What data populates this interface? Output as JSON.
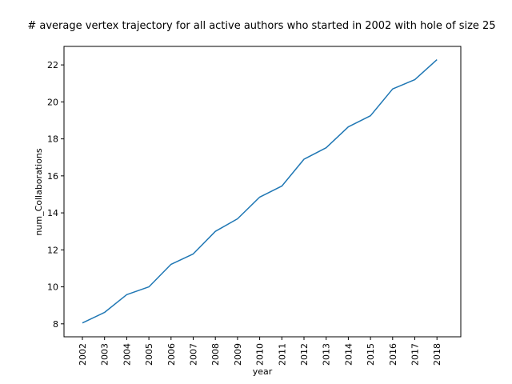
{
  "chart_data": {
    "type": "line",
    "title": "# average vertex trajectory for all active authors who started in 2002 with hole of size 25",
    "xlabel": "year",
    "ylabel": "num_Collaborations",
    "x": [
      "2002",
      "2003",
      "2004",
      "2005",
      "2006",
      "2007",
      "2008",
      "2009",
      "2010",
      "2011",
      "2012",
      "2013",
      "2014",
      "2015",
      "2016",
      "2017",
      "2018"
    ],
    "series": [
      {
        "values": [
          8.05,
          8.62,
          9.58,
          10.0,
          11.22,
          11.78,
          13.0,
          13.68,
          14.85,
          15.45,
          16.9,
          17.52,
          18.65,
          19.25,
          20.7,
          21.2,
          22.28
        ]
      }
    ],
    "ylim": [
      7.3,
      23.0
    ],
    "yticks": [
      8,
      10,
      12,
      14,
      16,
      18,
      20,
      22
    ],
    "grid": false,
    "colors": {
      "line": "#1f77b4",
      "axes": "#000000",
      "background": "#ffffff"
    }
  }
}
